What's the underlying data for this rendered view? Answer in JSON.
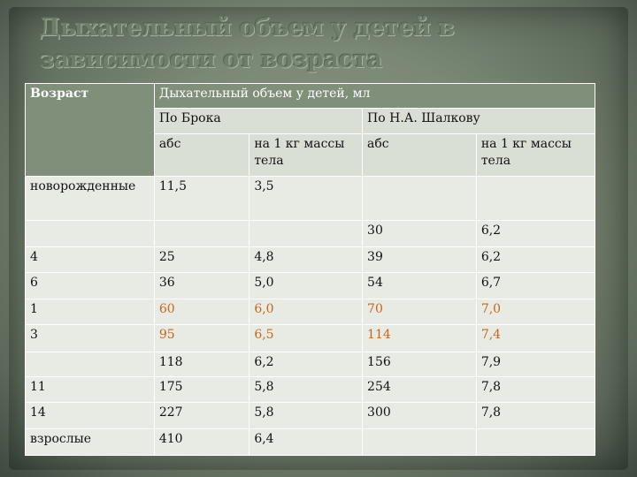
{
  "title": "Дыхательный объем у детей в зависимости от возраста",
  "table": {
    "age_header": "Возраст",
    "volume_header": "Дыхательный объем у детей, мл",
    "broca_header": "По Брока",
    "shalkov_header": "По Н.А. Шалкову",
    "sub_headers": [
      "абс",
      "на 1 кг массы тела",
      "абс",
      "на 1 кг массы тела"
    ],
    "rows": [
      {
        "age": "новорожденные",
        "c1": "11,5",
        "c2": "3,5",
        "c3": "",
        "c4": "",
        "highlight": false
      },
      {
        "age": "",
        "c1": "",
        "c2": "",
        "c3": "30",
        "c4": "6,2",
        "highlight": false
      },
      {
        "age": "4",
        "c1": "25",
        "c2": "4,8",
        "c3": "39",
        "c4": "6,2",
        "highlight": false
      },
      {
        "age": "6",
        "c1": "36",
        "c2": "5,0",
        "c3": "54",
        "c4": "6,7",
        "highlight": false
      },
      {
        "age": "1",
        "c1": "60",
        "c2": "6,0",
        "c3": "70",
        "c4": "7,0",
        "highlight": true
      },
      {
        "age": "3",
        "c1": "95",
        "c2": "6,5",
        "c3": "114",
        "c4": "7,4",
        "highlight": true
      },
      {
        "age": "",
        "c1": "118",
        "c2": "6,2",
        "c3": "156",
        "c4": "7,9",
        "highlight": false
      },
      {
        "age": "11",
        "c1": "175",
        "c2": "5,8",
        "c3": "254",
        "c4": "7,8",
        "highlight": false
      },
      {
        "age": "14",
        "c1": "227",
        "c2": "5,8",
        "c3": "300",
        "c4": "7,8",
        "highlight": false
      },
      {
        "age": "взрослые",
        "c1": "410",
        "c2": "6,4",
        "c3": "",
        "c4": "",
        "highlight": false
      }
    ]
  },
  "colors": {
    "header_bg": "#7f8f79",
    "cell_bg": "#e8ebe4",
    "highlight_text": "#c8651b"
  }
}
